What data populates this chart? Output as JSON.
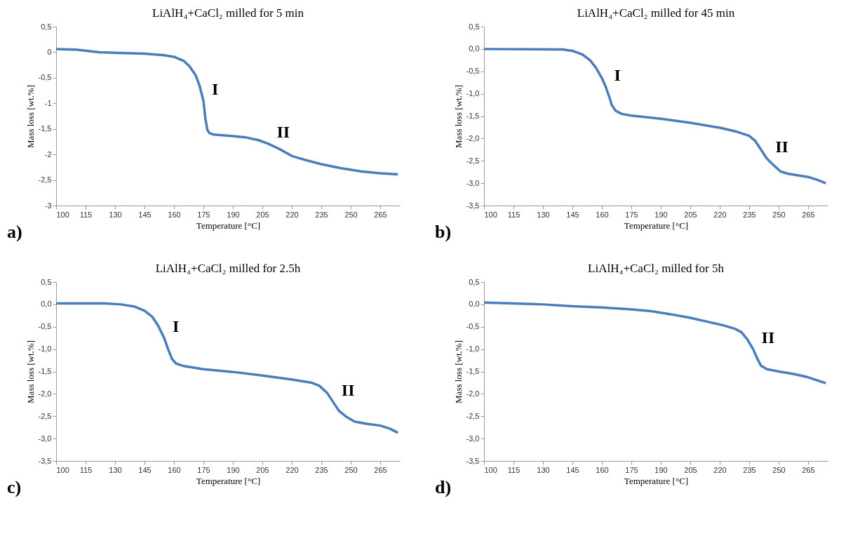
{
  "chart_data": [
    {
      "type": "line",
      "title": "LiAlH₄+CaCl₂ milled for 5 min",
      "xlabel": "Temperature [°C]",
      "ylabel": "Mass loss [wt.%]",
      "xlim": [
        100,
        275
      ],
      "xticks": [
        100,
        115,
        130,
        145,
        160,
        175,
        190,
        205,
        220,
        235,
        250,
        265
      ],
      "ylim": [
        -3,
        0.5
      ],
      "yticks": [
        {
          "value": 0.5,
          "label": "0,5"
        },
        0,
        {
          "value": -0.5,
          "label": "-0,5"
        },
        -1,
        {
          "value": -1.5,
          "label": "-1,5"
        },
        -2,
        {
          "value": -2.5,
          "label": "-2,5"
        },
        -3
      ],
      "line_style": "solid",
      "x": [
        100,
        110,
        115,
        122,
        130,
        145,
        155,
        160,
        165,
        168,
        171,
        173,
        175,
        176,
        177,
        178,
        180,
        190,
        197,
        203,
        208,
        214,
        220,
        227,
        235,
        245,
        255,
        265,
        274
      ],
      "series": [
        {
          "color": "#4a7ebb",
          "values": [
            0.06,
            0.05,
            0.03,
            0.0,
            -0.01,
            -0.03,
            -0.06,
            -0.09,
            -0.17,
            -0.28,
            -0.45,
            -0.65,
            -0.95,
            -1.3,
            -1.52,
            -1.58,
            -1.61,
            -1.64,
            -1.67,
            -1.72,
            -1.79,
            -1.9,
            -2.03,
            -2.11,
            -2.19,
            -2.27,
            -2.33,
            -2.37,
            -2.39
          ]
        }
      ],
      "annotations": [
        {
          "text": "I",
          "x": 175,
          "y": -0.95
        },
        {
          "text": "II",
          "x": 208,
          "y": -1.79
        },
        "a)"
      ]
    },
    {
      "type": "line",
      "title": "LiAlH₄+CaCl₂ milled for 45 min",
      "xlabel": "Temperature [°C]",
      "ylabel": "Mass loss [wt.%]",
      "xlim": [
        100,
        275
      ],
      "xticks": [
        100,
        115,
        130,
        145,
        160,
        175,
        190,
        205,
        220,
        235,
        250,
        265
      ],
      "ylim": [
        -3.5,
        0.5
      ],
      "yticks": [
        {
          "value": 0.5,
          "label": "0,5"
        },
        {
          "value": 0,
          "label": "0,0"
        },
        {
          "value": -0.5,
          "label": "-0,5"
        },
        {
          "value": -1,
          "label": "-1,0"
        },
        {
          "value": -1.5,
          "label": "-1,5"
        },
        {
          "value": -2,
          "label": "-2,0"
        },
        {
          "value": -2.5,
          "label": "-2,5"
        },
        {
          "value": -3,
          "label": "-3,0"
        },
        {
          "value": -3.5,
          "label": "-3,5"
        }
      ],
      "line_style": "solid",
      "x": [
        100,
        140,
        145,
        150,
        154,
        157,
        160,
        162,
        164,
        165,
        167,
        170,
        175,
        190,
        205,
        220,
        228,
        235,
        238,
        241,
        244,
        248,
        251,
        255,
        265,
        270,
        274
      ],
      "series": [
        {
          "color": "#4a7ebb",
          "values": [
            0.0,
            -0.01,
            -0.04,
            -0.12,
            -0.25,
            -0.42,
            -0.65,
            -0.85,
            -1.1,
            -1.25,
            -1.38,
            -1.45,
            -1.49,
            -1.56,
            -1.65,
            -1.76,
            -1.84,
            -1.94,
            -2.05,
            -2.25,
            -2.45,
            -2.62,
            -2.74,
            -2.79,
            -2.86,
            -2.93,
            -3.0
          ]
        }
      ],
      "annotations": [
        {
          "text": "I",
          "x": 162,
          "y": -0.85
        },
        {
          "text": "II",
          "x": 244,
          "y": -2.45
        },
        "b)"
      ]
    },
    {
      "type": "line",
      "title": "LiAlH₄+CaCl₂ milled for 2.5h",
      "xlabel": "Temperature [°C]",
      "ylabel": "Mass loss [wt.%]",
      "xlim": [
        100,
        275
      ],
      "xticks": [
        100,
        115,
        130,
        145,
        160,
        175,
        190,
        205,
        220,
        235,
        250,
        265
      ],
      "ylim": [
        -3.5,
        0.5
      ],
      "yticks": [
        {
          "value": 0.5,
          "label": "0,5"
        },
        {
          "value": 0,
          "label": "0,0"
        },
        {
          "value": -0.5,
          "label": "-0,5"
        },
        {
          "value": -1,
          "label": "-1,0"
        },
        {
          "value": -1.5,
          "label": "-1,5"
        },
        {
          "value": -2,
          "label": "-2,0"
        },
        {
          "value": -2.5,
          "label": "-2,5"
        },
        {
          "value": -3,
          "label": "-3,0"
        },
        {
          "value": -3.5,
          "label": "-3,5"
        }
      ],
      "line_style": "solid",
      "x": [
        100,
        125,
        133,
        140,
        145,
        149,
        152,
        155,
        157,
        159,
        161,
        165,
        175,
        190,
        205,
        220,
        230,
        234,
        238,
        241,
        244,
        248,
        252,
        258,
        265,
        270,
        274
      ],
      "series": [
        {
          "color": "#4a7ebb",
          "values": [
            0.02,
            0.02,
            0.0,
            -0.05,
            -0.14,
            -0.28,
            -0.48,
            -0.75,
            -1.0,
            -1.22,
            -1.32,
            -1.38,
            -1.45,
            -1.51,
            -1.59,
            -1.68,
            -1.75,
            -1.82,
            -1.98,
            -2.18,
            -2.38,
            -2.52,
            -2.62,
            -2.67,
            -2.71,
            -2.78,
            -2.87
          ]
        }
      ],
      "annotations": [
        {
          "text": "I",
          "x": 155,
          "y": -0.75
        },
        {
          "text": "II",
          "x": 241,
          "y": -2.18
        },
        "c)"
      ]
    },
    {
      "type": "line",
      "title": "LiAlH₄+CaCl₂ milled for 5h",
      "xlabel": "Temperature [°C]",
      "ylabel": "Mass loss [wt.%]",
      "xlim": [
        100,
        275
      ],
      "xticks": [
        100,
        115,
        130,
        145,
        160,
        175,
        190,
        205,
        220,
        235,
        250,
        265
      ],
      "ylim": [
        -3.5,
        0.5
      ],
      "yticks": [
        {
          "value": 0.5,
          "label": "0,5"
        },
        {
          "value": 0,
          "label": "0,0"
        },
        {
          "value": -0.5,
          "label": "-0,5"
        },
        {
          "value": -1,
          "label": "-1,0"
        },
        {
          "value": -1.5,
          "label": "-1,5"
        },
        {
          "value": -2,
          "label": "-2,0"
        },
        {
          "value": -2.5,
          "label": "-2,5"
        },
        {
          "value": -3,
          "label": "-3,0"
        },
        {
          "value": -3.5,
          "label": "-3,5"
        }
      ],
      "line_style": "solid",
      "x": [
        100,
        115,
        130,
        145,
        160,
        175,
        185,
        195,
        205,
        215,
        222,
        228,
        231,
        234,
        237,
        239,
        241,
        244,
        250,
        258,
        265,
        274
      ],
      "series": [
        {
          "color": "#4a7ebb",
          "values": [
            0.04,
            0.02,
            0.0,
            -0.04,
            -0.07,
            -0.11,
            -0.15,
            -0.22,
            -0.3,
            -0.4,
            -0.47,
            -0.55,
            -0.62,
            -0.78,
            -1.0,
            -1.2,
            -1.37,
            -1.45,
            -1.5,
            -1.56,
            -1.63,
            -1.76
          ]
        }
      ],
      "annotations": [
        {
          "text": "II",
          "x": 237,
          "y": -1.0
        },
        "d)"
      ]
    }
  ]
}
